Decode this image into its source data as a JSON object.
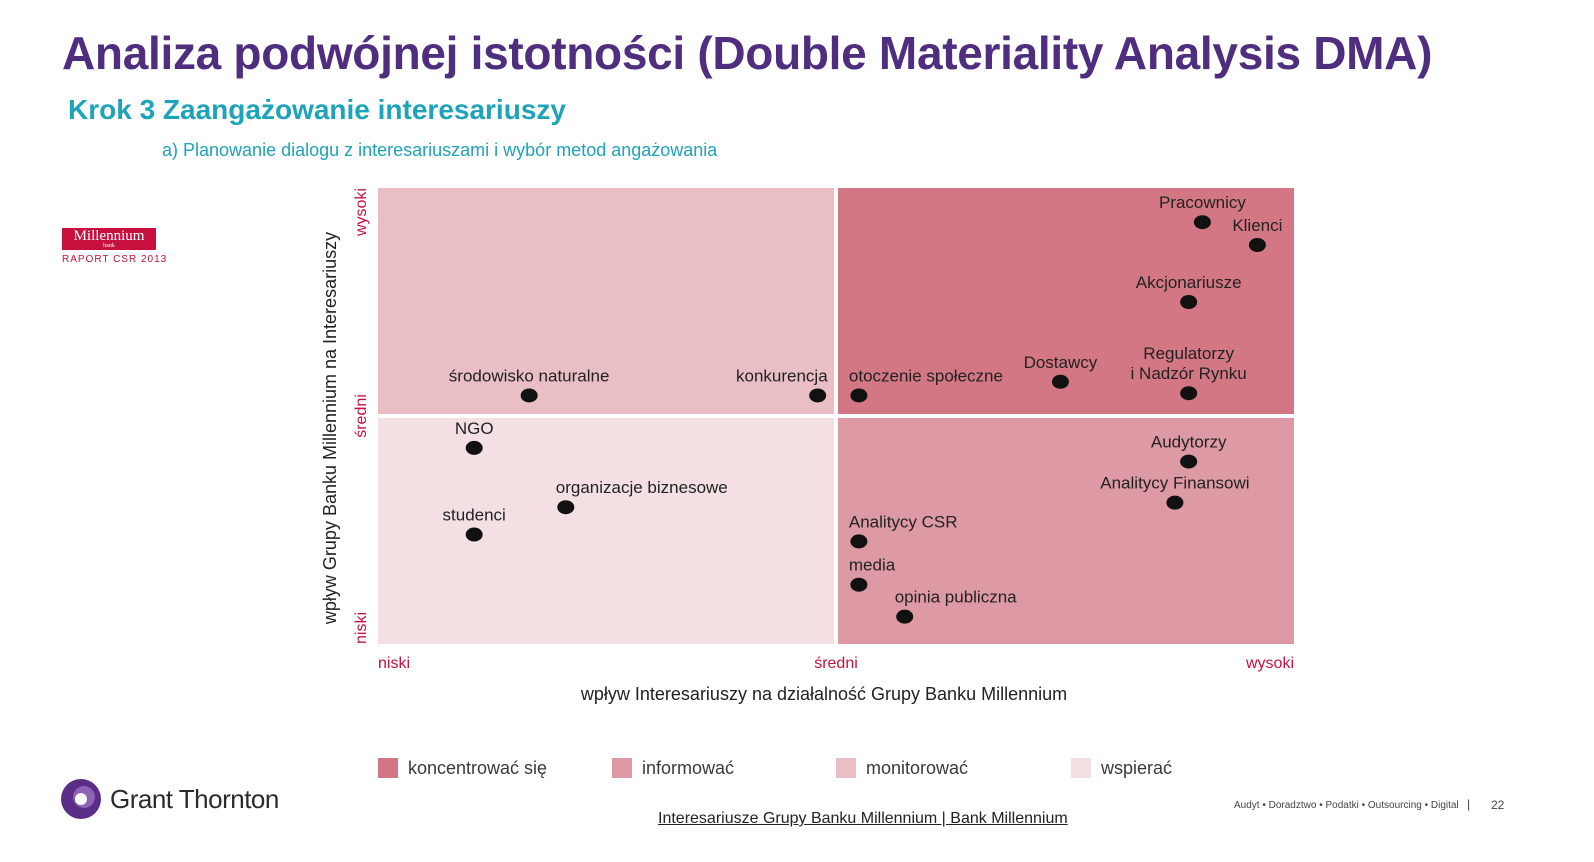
{
  "header": {
    "title": "Analiza podwójnej istotności (Double Materiality Analysis DMA)",
    "subtitle": "Krok 3 Zaangażowanie interesariuszy",
    "section": "a) Planowanie dialogu z interesariuszami i wybór metod angażowania"
  },
  "logo_millennium": {
    "name": "Millennium",
    "small": "bank",
    "report": "RAPORT CSR 2013"
  },
  "chart_data": {
    "type": "scatter",
    "title": "",
    "xlabel": "wpływ Interesariuszy na działalność Grupy Banku Millennium",
    "ylabel": "wpływ Grupy Banku Millennium na Interesariuszy",
    "xlim": [
      0,
      2
    ],
    "ylim": [
      0,
      2
    ],
    "x_ticks": [
      {
        "value": 0,
        "label": "niski"
      },
      {
        "value": 1,
        "label": "średni"
      },
      {
        "value": 2,
        "label": "wysoki"
      }
    ],
    "y_ticks": [
      {
        "value": 0,
        "label": "niski"
      },
      {
        "value": 1,
        "label": "średni"
      },
      {
        "value": 2,
        "label": "wysoki"
      }
    ],
    "quadrants": [
      {
        "x": [
          0,
          1
        ],
        "y": [
          1,
          2
        ],
        "color": "#e9bfc5"
      },
      {
        "x": [
          1,
          2
        ],
        "y": [
          1,
          2
        ],
        "color": "#d47784"
      },
      {
        "x": [
          0,
          1
        ],
        "y": [
          0,
          1
        ],
        "color": "#f4e0e3"
      },
      {
        "x": [
          1,
          2
        ],
        "y": [
          0,
          1
        ],
        "color": "#de9aa4"
      }
    ],
    "points": [
      {
        "label": "Pracownicy",
        "x": 1.8,
        "y": 1.85,
        "label_pos": "above"
      },
      {
        "label": "Klienci",
        "x": 1.92,
        "y": 1.75,
        "label_pos": "above"
      },
      {
        "label": "Akcjonariusze",
        "x": 1.77,
        "y": 1.5,
        "label_pos": "above"
      },
      {
        "label": "Regulatorzy\ni Nadzór Rynku",
        "x": 1.77,
        "y": 1.1,
        "label_pos": "above"
      },
      {
        "label": "Dostawcy",
        "x": 1.49,
        "y": 1.15,
        "label_pos": "above"
      },
      {
        "label": "otoczenie społeczne",
        "x": 1.05,
        "y": 1.09,
        "label_pos": "right-above"
      },
      {
        "label": "konkurencja",
        "x": 0.96,
        "y": 1.09,
        "label_pos": "left-above"
      },
      {
        "label": "środowisko naturalne",
        "x": 0.33,
        "y": 1.09,
        "label_pos": "above"
      },
      {
        "label": "NGO",
        "x": 0.21,
        "y": 0.86,
        "label_pos": "above"
      },
      {
        "label": "organizacje biznesowe",
        "x": 0.41,
        "y": 0.6,
        "label_pos": "right-above"
      },
      {
        "label": "studenci",
        "x": 0.21,
        "y": 0.48,
        "label_pos": "above"
      },
      {
        "label": "Audytorzy",
        "x": 1.77,
        "y": 0.8,
        "label_pos": "above"
      },
      {
        "label": "Analitycy Finansowi",
        "x": 1.74,
        "y": 0.62,
        "label_pos": "above"
      },
      {
        "label": "Analitycy CSR",
        "x": 1.05,
        "y": 0.45,
        "label_pos": "right-above"
      },
      {
        "label": "media",
        "x": 1.05,
        "y": 0.26,
        "label_pos": "right-above"
      },
      {
        "label": "opinia publiczna",
        "x": 1.15,
        "y": 0.12,
        "label_pos": "right-above"
      }
    ],
    "legend": [
      {
        "label": "koncentrować się",
        "color": "#d47784"
      },
      {
        "label": "informować",
        "color": "#de9aa4"
      },
      {
        "label": "monitorować",
        "color": "#e9bfc5"
      },
      {
        "label": "wspierać",
        "color": "#f4e0e3"
      }
    ],
    "grid": false,
    "legend_position": "bottom"
  },
  "footer": {
    "brand": "Grant Thornton",
    "link": "Interesariusze Grupy Banku Millennium | Bank Millennium",
    "tagline": "Audyt • Doradztwo • Podatki • Outsourcing • Digital",
    "separator": "|",
    "page": "22"
  }
}
